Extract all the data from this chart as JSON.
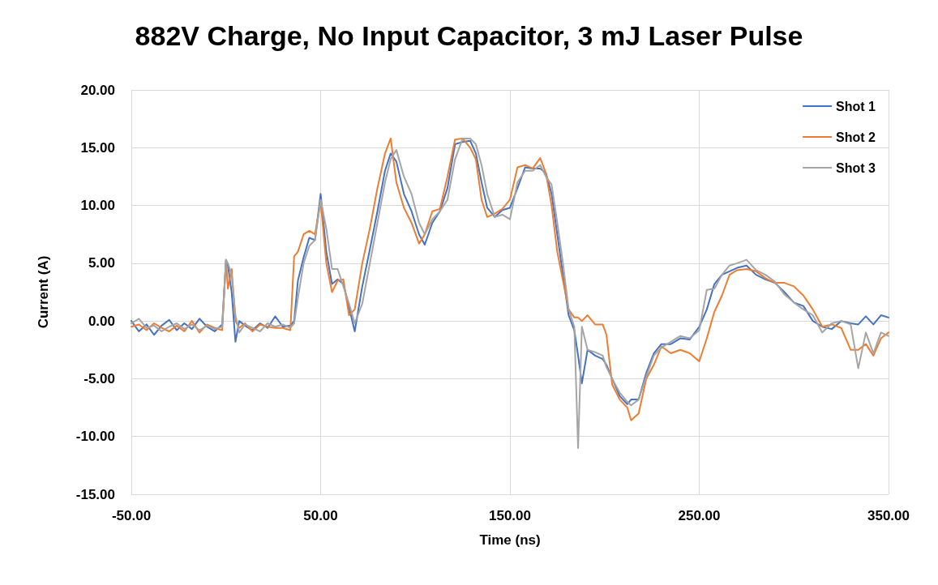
{
  "chart_data": {
    "type": "line",
    "title": "882V Charge, No Input Capacitor, 3 mJ Laser Pulse",
    "xlabel": "Time (ns)",
    "ylabel": "Current (A)",
    "x": [
      -50,
      -46,
      -42,
      -38,
      -34,
      -30,
      -26,
      -22,
      -18,
      -14,
      -10,
      -6,
      -2,
      0,
      1,
      3,
      5,
      7,
      10,
      14,
      18,
      22,
      26,
      30,
      34,
      36,
      38,
      41,
      44,
      47,
      50,
      53,
      56,
      59,
      62,
      65,
      68,
      72,
      76,
      80,
      84,
      87,
      90,
      94,
      98,
      102,
      105,
      109,
      113,
      117,
      121,
      125,
      129,
      132,
      135,
      138,
      142,
      146,
      150,
      154,
      158,
      162,
      166,
      169,
      172,
      175,
      178,
      181,
      184,
      186,
      188,
      191,
      195,
      199,
      201,
      204,
      208,
      212,
      214,
      218,
      222,
      226,
      230,
      235,
      240,
      245,
      250,
      254,
      258,
      262,
      266,
      270,
      275,
      280,
      285,
      290,
      295,
      300,
      305,
      310,
      315,
      320,
      325,
      330,
      334,
      338,
      342,
      346,
      350
    ],
    "series": [
      {
        "name": "Shot 1",
        "color": "#4472c4",
        "values": [
          0,
          -0.9,
          -0.3,
          -1.2,
          -0.4,
          0.1,
          -0.8,
          -0.2,
          -0.7,
          0.2,
          -0.5,
          -0.9,
          -0.3,
          5.2,
          4.8,
          2.5,
          -1.8,
          0,
          -0.4,
          -0.8,
          -0.2,
          -0.6,
          0.4,
          -0.5,
          -0.4,
          0,
          3.5,
          5.5,
          7.2,
          7.0,
          11,
          6,
          3.2,
          3.6,
          3.2,
          1.2,
          -0.9,
          3,
          6.2,
          9.5,
          13,
          14.5,
          13.8,
          11,
          9.5,
          7.5,
          6.6,
          8.5,
          9.5,
          11.5,
          15.3,
          15.5,
          15.6,
          14.5,
          12,
          9.8,
          9,
          9.6,
          9.8,
          11.5,
          13.3,
          13.2,
          13.2,
          12.8,
          11,
          7.5,
          4,
          0.5,
          -0.8,
          -3,
          -5.4,
          -2.5,
          -3,
          -3.3,
          -3.8,
          -5,
          -6.5,
          -7.2,
          -6.8,
          -6.8,
          -4.5,
          -2.8,
          -2,
          -2,
          -1.5,
          -1.6,
          -0.5,
          1,
          3.2,
          4,
          4.3,
          4.6,
          4.8,
          4,
          3.6,
          3.3,
          2.5,
          1.6,
          1.3,
          0,
          -0.5,
          -0.7,
          0,
          -0.2,
          -0.3,
          0.4,
          -0.3,
          0.5,
          0.3
        ]
      },
      {
        "name": "Shot 2",
        "color": "#ed7d31",
        "values": [
          -0.5,
          -0.3,
          -0.8,
          -0.2,
          -0.6,
          -0.9,
          -0.4,
          -0.9,
          0,
          -1,
          -0.3,
          -0.6,
          -0.8,
          5.3,
          2.8,
          4.5,
          0,
          -0.6,
          -0.2,
          -0.9,
          -0.3,
          -0.5,
          -0.6,
          -0.6,
          -0.8,
          5.6,
          6,
          7.5,
          7.8,
          7.5,
          10.3,
          5,
          2.5,
          3.5,
          3.6,
          0.5,
          1,
          5,
          8,
          11.5,
          14.5,
          15.8,
          12,
          9.8,
          8.5,
          6.7,
          7.5,
          9.5,
          9.7,
          12.5,
          15.7,
          15.8,
          15,
          14,
          10.5,
          9,
          9.3,
          9.7,
          10.5,
          13.3,
          13.5,
          13.2,
          14.1,
          12.8,
          10,
          6,
          3.5,
          1,
          0.3,
          0.3,
          0,
          0.5,
          -0.3,
          -0.3,
          -1.2,
          -5.5,
          -6.8,
          -7.5,
          -8.6,
          -8,
          -5,
          -3.8,
          -2.2,
          -2.8,
          -2.5,
          -2.8,
          -3.5,
          -1.5,
          0.8,
          2.2,
          4,
          4.4,
          4.5,
          4.3,
          3.7,
          3.3,
          3.3,
          3,
          2.2,
          1,
          -0.5,
          -0.3,
          -0.6,
          -2.5,
          -2.5,
          -2,
          -3,
          -1.5,
          -1
        ]
      },
      {
        "name": "Shot 3",
        "color": "#a5a5a5",
        "values": [
          -0.2,
          0.2,
          -0.6,
          -0.4,
          -0.9,
          -0.5,
          -0.2,
          -0.7,
          -0.3,
          -0.8,
          -0.4,
          -0.7,
          -0.5,
          5.3,
          5,
          4,
          0.5,
          -1,
          -0.3,
          -0.6,
          -0.9,
          -0.2,
          -0.5,
          -0.3,
          -0.6,
          -0.2,
          2,
          5,
          6.5,
          7,
          10.5,
          8,
          4.5,
          4.5,
          3,
          1.5,
          -0.2,
          1.5,
          5,
          8.5,
          12,
          14,
          14.8,
          12.5,
          11,
          8.5,
          7.5,
          8.8,
          9.5,
          10.5,
          14,
          15.8,
          15.8,
          15.3,
          13.5,
          11,
          9,
          9.2,
          8.8,
          12,
          13,
          13,
          13.5,
          12.5,
          11.8,
          8.5,
          5,
          1,
          -0.5,
          -11,
          -0.5,
          -2.5,
          -2.7,
          -3,
          -4,
          -5,
          -6.2,
          -7,
          -7.3,
          -6.8,
          -4.8,
          -3,
          -2.3,
          -1.8,
          -1.3,
          -1.5,
          -0.8,
          2.7,
          2.8,
          4,
          4.8,
          5,
          5.3,
          4.4,
          4,
          3.4,
          2.3,
          1.6,
          1,
          0.5,
          -1,
          -0.2,
          0,
          -0.3,
          -4.1,
          -1,
          -2.8,
          -1,
          -1.3
        ]
      }
    ],
    "xlim": [
      -50,
      350
    ],
    "xticks": [
      {
        "value": -50,
        "label": "-50.00"
      },
      {
        "value": 50,
        "label": "50.00"
      },
      {
        "value": 150,
        "label": "150.00"
      },
      {
        "value": 250,
        "label": "250.00"
      },
      {
        "value": 350,
        "label": "350.00"
      }
    ],
    "ylim": [
      -15,
      20
    ],
    "yticks": [
      {
        "value": -15,
        "label": "-15.00"
      },
      {
        "value": -10,
        "label": "-10.00"
      },
      {
        "value": -5,
        "label": "-5.00"
      },
      {
        "value": 0,
        "label": "0.00"
      },
      {
        "value": 5,
        "label": "5.00"
      },
      {
        "value": 10,
        "label": "10.00"
      },
      {
        "value": 15,
        "label": "15.00"
      },
      {
        "value": 20,
        "label": "20.00"
      }
    ],
    "grid": true,
    "legend": "top right",
    "marker": "none",
    "line_style": "solid"
  }
}
